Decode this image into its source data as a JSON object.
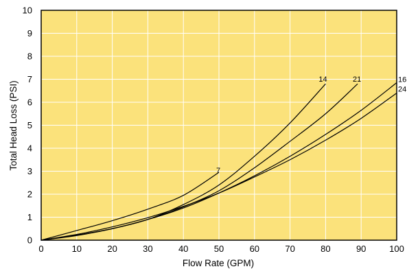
{
  "chart_data": {
    "type": "line",
    "title": "",
    "xlabel": "Flow Rate (GPM)",
    "ylabel": "Total Head Loss (PSI)",
    "xlim": [
      0,
      100
    ],
    "ylim": [
      0,
      10
    ],
    "xticks": [
      "0",
      "10",
      "20",
      "30",
      "40",
      "50",
      "60",
      "70",
      "80",
      "90",
      "100"
    ],
    "yticks": [
      "0",
      "1",
      "2",
      "3",
      "4",
      "5",
      "6",
      "7",
      "8",
      "9",
      "10"
    ],
    "grid": true,
    "background_color": "#fbe27b",
    "line_color": "#000000",
    "series": [
      {
        "name": "7",
        "x": [
          0,
          10,
          20,
          30,
          40,
          50
        ],
        "y": [
          0,
          0.42,
          0.85,
          1.35,
          1.95,
          2.95
        ]
      },
      {
        "name": "14",
        "x": [
          0,
          10,
          20,
          30,
          40,
          50,
          60,
          70,
          80
        ],
        "y": [
          0,
          0.2,
          0.5,
          0.9,
          1.55,
          2.4,
          3.65,
          5.1,
          6.8
        ]
      },
      {
        "name": "21",
        "x": [
          0,
          10,
          20,
          30,
          40,
          50,
          60,
          70,
          80,
          89
        ],
        "y": [
          0,
          0.22,
          0.5,
          0.9,
          1.45,
          2.15,
          3.15,
          4.3,
          5.5,
          6.8
        ]
      },
      {
        "name": "16",
        "x": [
          0,
          10,
          20,
          30,
          40,
          50,
          60,
          70,
          80,
          90,
          100
        ],
        "y": [
          0,
          0.22,
          0.5,
          0.9,
          1.4,
          2.05,
          2.8,
          3.65,
          4.6,
          5.65,
          6.85
        ]
      },
      {
        "name": "24",
        "x": [
          0,
          10,
          20,
          30,
          40,
          50,
          60,
          70,
          80,
          90,
          100
        ],
        "y": [
          0,
          0.25,
          0.58,
          0.98,
          1.47,
          2.05,
          2.75,
          3.5,
          4.35,
          5.3,
          6.4
        ]
      }
    ]
  }
}
